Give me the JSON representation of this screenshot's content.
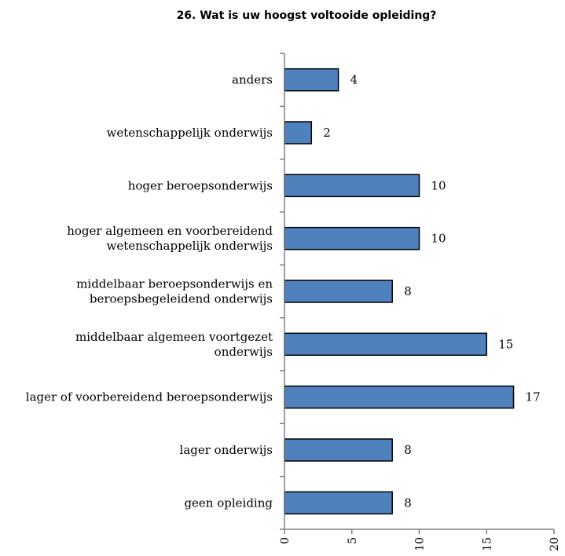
{
  "chart_data": {
    "type": "bar",
    "orientation": "horizontal",
    "title": "26. Wat is uw hoogst voltooide opleiding?",
    "categories": [
      "anders",
      "wetenschappelijk onderwijs",
      "hoger beroepsonderwijs",
      "hoger algemeen en voorbereidend wetenschappelijk onderwijs",
      "middelbaar beroepsonderwijs en beroepsbegeleidend onderwijs",
      "middelbaar algemeen voortgezet onderwijs",
      "lager of voorbereidend beroepsonderwijs",
      "lager onderwijs",
      "geen opleiding"
    ],
    "category_lines": [
      [
        "anders"
      ],
      [
        "wetenschappelijk onderwijs"
      ],
      [
        "hoger beroepsonderwijs"
      ],
      [
        "hoger algemeen en voorbereidend",
        "wetenschappelijk onderwijs"
      ],
      [
        "middelbaar beroepsonderwijs en",
        "beroepsbegeleidend onderwijs"
      ],
      [
        "middelbaar algemeen voortgezet",
        "onderwijs"
      ],
      [
        "lager of voorbereidend beroepsonderwijs"
      ],
      [
        "lager onderwijs"
      ],
      [
        "geen opleiding"
      ]
    ],
    "values": [
      4,
      2,
      10,
      10,
      8,
      15,
      17,
      8,
      8
    ],
    "xlim": [
      0,
      20
    ],
    "xticks": [
      0,
      5,
      10,
      15,
      20
    ],
    "bar_color": "#4f81bd",
    "xlabel": "",
    "ylabel": "",
    "grid": false,
    "legend": false
  }
}
